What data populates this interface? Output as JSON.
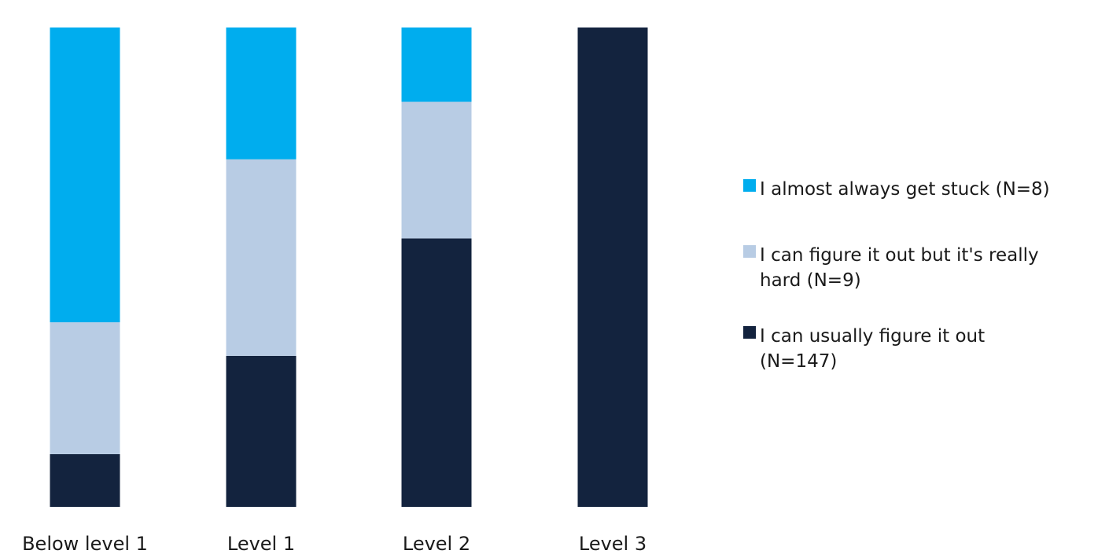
{
  "chart_data": {
    "type": "bar",
    "stacked": true,
    "normalized": true,
    "categories": [
      "Below level 1",
      "Level 1",
      "Level 2",
      "Level 3"
    ],
    "series": [
      {
        "name": "I can usually figure it out (N=147)",
        "color": "#13233e",
        "values": [
          11,
          31.5,
          56,
          100
        ]
      },
      {
        "name": "I can figure it out but it's really hard (N=9)",
        "color": "#b8cce4",
        "values": [
          27.5,
          41,
          28.5,
          0
        ]
      },
      {
        "name": "I almost always get stuck (N=8)",
        "color": "#00adee",
        "values": [
          61.5,
          27.5,
          15.5,
          0
        ]
      }
    ],
    "ylim": [
      0,
      100
    ],
    "grid": false,
    "legend_position": "right"
  },
  "legend": {
    "items": [
      {
        "lines": [
          "I almost always get stuck (N=8)"
        ],
        "color": "#00adee"
      },
      {
        "lines": [
          "I can figure it out but it's really",
          "hard (N=9)"
        ],
        "color": "#b8cce4"
      },
      {
        "lines": [
          "I can usually figure it out",
          "(N=147)"
        ],
        "color": "#13233e"
      }
    ]
  }
}
